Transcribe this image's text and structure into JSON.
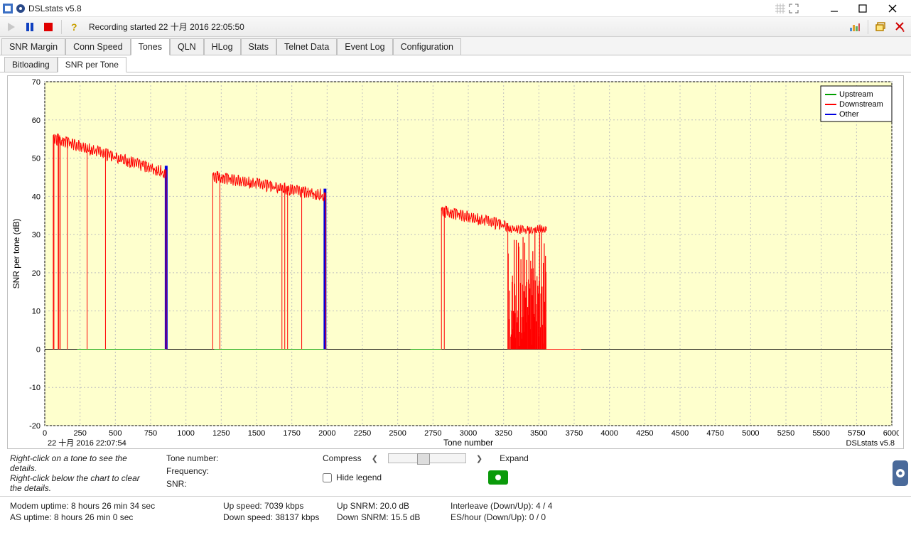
{
  "title": "DSLstats v5.8",
  "recording_status": "Recording started 22 十月 2016 22:05:50",
  "tabs": [
    "SNR Margin",
    "Conn Speed",
    "Tones",
    "QLN",
    "HLog",
    "Stats",
    "Telnet Data",
    "Event Log",
    "Configuration"
  ],
  "active_tab": "Tones",
  "subtabs": [
    "Bitloading",
    "SNR per Tone"
  ],
  "active_subtab": "SNR per Tone",
  "chart": {
    "bg": "#feffcd",
    "grid": "#c0c0c0",
    "axis_color": "#000000",
    "xlabel": "Tone number",
    "ylabel": "SNR per tone (dB)",
    "ts_label": "22 十月 2016 22:07:54",
    "brand": "DSLstats v5.8",
    "xlim": [
      0,
      6000
    ],
    "xtick_step": 250,
    "ylim": [
      -20,
      70
    ],
    "ytick_step": 10,
    "legend": [
      {
        "label": "Upstream",
        "color": "#00a000"
      },
      {
        "label": "Downstream",
        "color": "#ff0000"
      },
      {
        "label": "Other",
        "color": "#0000e0"
      }
    ],
    "series": {
      "upstream": {
        "color": "#00a000",
        "segments": [
          {
            "x0": 230,
            "x1": 860,
            "y": 0
          },
          {
            "x0": 1200,
            "x1": 1990,
            "y": 0
          },
          {
            "x0": 2590,
            "x1": 2810,
            "y": 0
          },
          {
            "x0": 3550,
            "x1": 3800,
            "y": 0
          }
        ]
      },
      "other": {
        "color": "#0000e0",
        "ranges": [
          {
            "x0": 850,
            "x1": 870,
            "y0": 0,
            "y1": 48
          },
          {
            "x0": 1975,
            "x1": 1995,
            "y0": 0,
            "y1": 42
          }
        ]
      },
      "downstream": {
        "color": "#ff0000",
        "bands": [
          {
            "x0": 60,
            "x1": 860,
            "y0": 56,
            "y1": 47,
            "gap": false
          },
          {
            "x0": 1190,
            "x1": 1990,
            "y0": 46,
            "y1": 41,
            "gap": false
          },
          {
            "x0": 2810,
            "x1": 3280,
            "y0": 37,
            "y1": 33,
            "gap": false
          }
        ],
        "spikes_zero": [
          65,
          95,
          100,
          110,
          160,
          300,
          430,
          1240,
          1680,
          1700,
          1720,
          1820,
          2830
        ],
        "noisy_range": {
          "x0": 3280,
          "x1": 3555,
          "ytop": 32,
          "density": 0.75
        },
        "trail_zero": {
          "x0": 3555,
          "x1": 3800
        }
      }
    }
  },
  "details": {
    "hint1": "Right-click on a tone to see the details.",
    "hint2": "Right-click below the chart to clear the details.",
    "tone_label": "Tone number:",
    "freq_label": "Frequency:",
    "snr_label": "SNR:",
    "compress": "Compress",
    "expand": "Expand",
    "hide_legend": "Hide legend"
  },
  "status": {
    "modem_uptime": "Modem uptime:  8 hours 26 min 34 sec",
    "as_uptime": "AS uptime:  8 hours 26 min 0 sec",
    "up_speed": "Up speed: 7039 kbps",
    "down_speed": "Down speed: 38137 kbps",
    "up_snrm": "Up SNRM: 20.0 dB",
    "down_snrm": "Down SNRM: 15.5 dB",
    "interleave": "Interleave (Down/Up): 4 / 4",
    "es": "ES/hour (Down/Up): 0 / 0"
  }
}
